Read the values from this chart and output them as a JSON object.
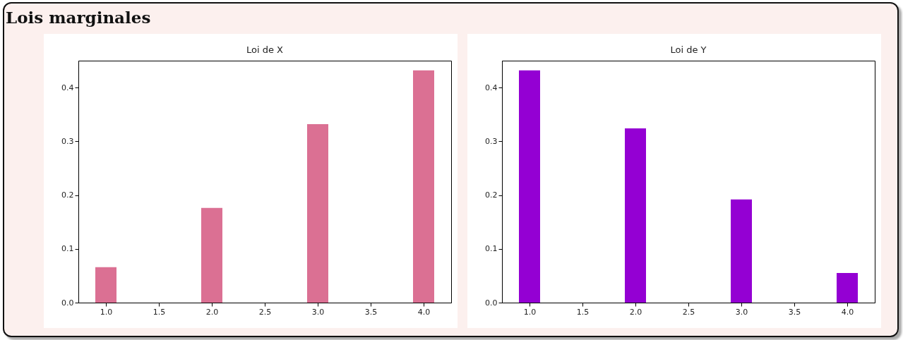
{
  "chart_data": [
    {
      "type": "bar",
      "title": "Loi de X",
      "annotations": [
        "Lois marginales"
      ],
      "x": [
        1,
        2,
        3,
        4
      ],
      "values": [
        0.066,
        0.176,
        0.332,
        0.432
      ],
      "color": "#db7093",
      "xlim": [
        0.74,
        4.26
      ],
      "xticks": [
        {
          "value": 1,
          "label": "1.0"
        },
        1.5,
        {
          "value": 2,
          "label": "2.0"
        },
        2.5,
        {
          "value": 3,
          "label": "3.0"
        },
        3.5,
        {
          "value": 4,
          "label": "4.0"
        }
      ],
      "ylim": [
        0,
        0.45
      ],
      "yticks": [
        {
          "value": 0,
          "label": "0.0"
        },
        0.1,
        0.2,
        0.3,
        0.4
      ],
      "grid": false,
      "legend": false
    },
    {
      "type": "bar",
      "title": "Loi de Y",
      "x": [
        1,
        2,
        3,
        4
      ],
      "values": [
        0.432,
        0.324,
        0.192,
        0.055
      ],
      "color": "#9400d3",
      "xlim": [
        0.74,
        4.26
      ],
      "xticks": [
        {
          "value": 1,
          "label": "1.0"
        },
        1.5,
        {
          "value": 2,
          "label": "2.0"
        },
        2.5,
        {
          "value": 3,
          "label": "3.0"
        },
        3.5,
        {
          "value": 4,
          "label": "4.0"
        }
      ],
      "ylim": [
        0,
        0.45
      ],
      "yticks": [
        {
          "value": 0,
          "label": "0.0"
        },
        0.1,
        0.2,
        0.3,
        0.4
      ],
      "grid": false,
      "legend": false
    }
  ]
}
